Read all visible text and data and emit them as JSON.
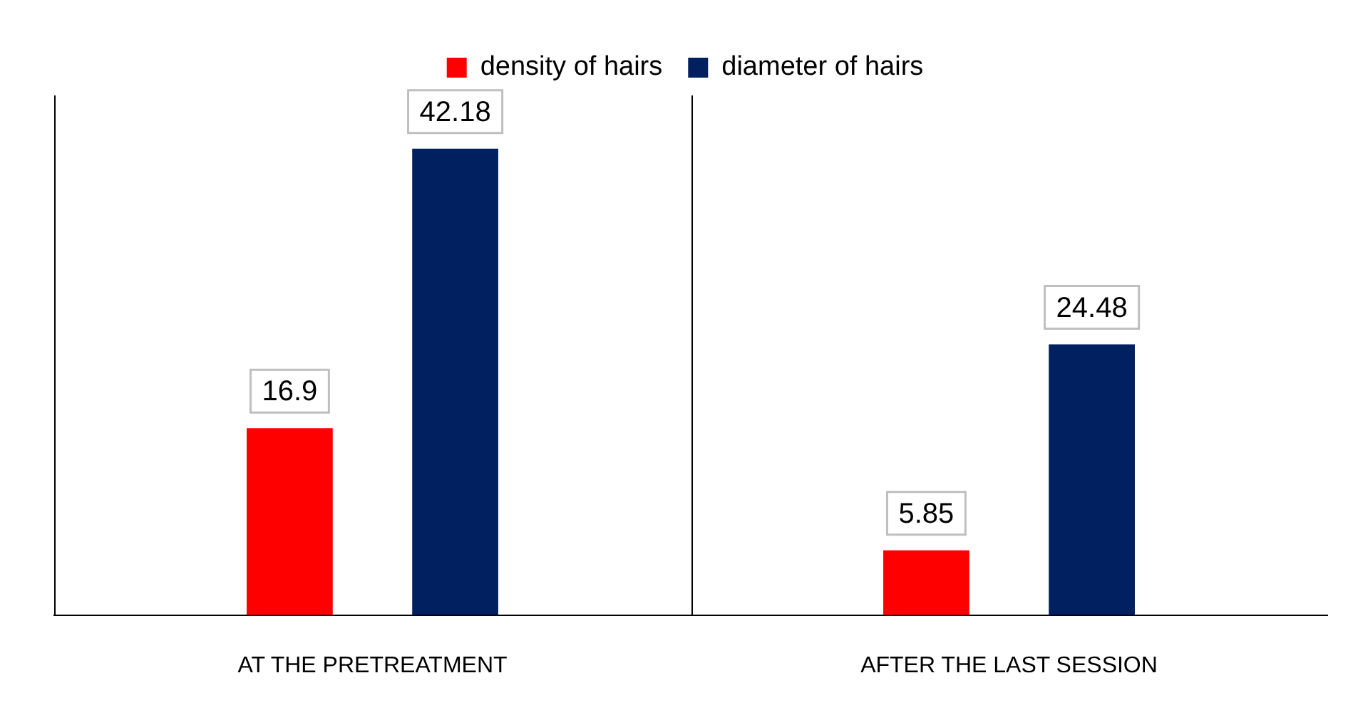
{
  "chart_data": {
    "type": "bar",
    "categories": [
      "AT THE PRETREATMENT",
      "AFTER THE LAST SESSION"
    ],
    "series": [
      {
        "name": "density of hairs",
        "color": "#ff0000",
        "values": [
          16.9,
          5.85
        ]
      },
      {
        "name": "diameter of hairs",
        "color": "#002060",
        "values": [
          42.18,
          24.48
        ]
      }
    ],
    "ylim": [
      0,
      47
    ],
    "tick_labels": "x",
    "grid": "x",
    "legend": "top",
    "data_labels": true
  }
}
